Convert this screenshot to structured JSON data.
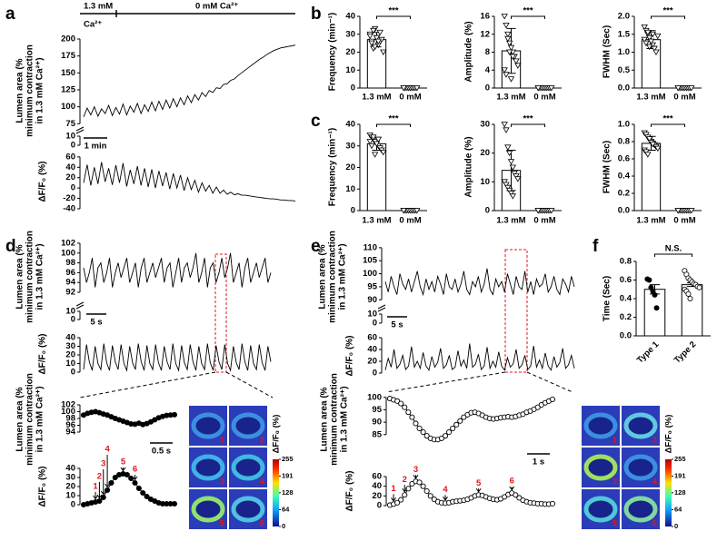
{
  "chart_data": [
    {
      "type": "line",
      "label": "a",
      "ylabel": [
        "Lumen area (%",
        "minimum contraction",
        "in 1.3 mM Ca²⁺)"
      ],
      "annotations": [
        "1.3 mM",
        "Ca²⁺",
        "0 mM Ca²⁺"
      ],
      "scalebar": "1 min",
      "ylim": [
        70,
        200
      ],
      "yticks": [
        75,
        100,
        125,
        150,
        175,
        200
      ],
      "break_ticks": [
        0,
        10
      ],
      "values": [
        85,
        98,
        88,
        100,
        86,
        97,
        90,
        102,
        87,
        99,
        89,
        104,
        88,
        101,
        92,
        105,
        90,
        103,
        93,
        107,
        94,
        108,
        96,
        110,
        98,
        112,
        100,
        113,
        103,
        116,
        106,
        118,
        110,
        121,
        115,
        124,
        121,
        128,
        127,
        133,
        134,
        139,
        141,
        146,
        150,
        154,
        158,
        162,
        166,
        170,
        173,
        177,
        180,
        183,
        185,
        187,
        188,
        189,
        190,
        191
      ]
    },
    {
      "type": "line",
      "ylabel": [
        "ΔF/F₀ (%)"
      ],
      "ylim": [
        -40,
        65
      ],
      "yticks": [
        -40,
        -20,
        0,
        20,
        40,
        60
      ],
      "values": [
        10,
        45,
        5,
        40,
        8,
        50,
        12,
        38,
        6,
        44,
        10,
        48,
        3,
        35,
        8,
        42,
        5,
        38,
        2,
        36,
        0,
        33,
        4,
        30,
        -2,
        28,
        0,
        25,
        -5,
        20,
        -3,
        15,
        -8,
        10,
        -6,
        5,
        -10,
        2,
        -10,
        -4,
        -12,
        -8,
        -13,
        -11,
        -14,
        -14,
        -15,
        -16,
        -17,
        -18,
        -19,
        -20,
        -21,
        -21,
        -22,
        -23,
        -23,
        -24,
        -24,
        -25
      ]
    },
    {
      "type": "bar",
      "label": "b",
      "ylabel": [
        "Frequency (min⁻¹)"
      ],
      "categories": [
        "1.3 mM",
        "0 mM"
      ],
      "values": [
        27,
        0
      ],
      "errors": [
        4,
        0
      ],
      "markers": [
        "triangle",
        "triangle"
      ],
      "significance": "***",
      "ylim": [
        0,
        40
      ],
      "yticks": [
        0,
        10,
        20,
        30,
        40
      ],
      "points": [
        [
          30,
          26,
          22,
          33,
          28,
          24,
          31,
          27,
          20,
          29,
          25,
          32,
          23,
          28,
          26
        ],
        [
          0,
          0,
          0,
          0,
          0,
          0,
          0,
          0,
          0,
          0
        ]
      ]
    },
    {
      "type": "bar",
      "ylabel": [
        "Amplitude (%)"
      ],
      "categories": [
        "1.3 mM",
        "0 mM"
      ],
      "values": [
        8.3,
        0
      ],
      "errors": [
        5,
        0
      ],
      "markers": [
        "triangle",
        "triangle"
      ],
      "significance": "***",
      "ylim": [
        0,
        16
      ],
      "yticks": [
        0,
        4,
        8,
        12,
        16
      ],
      "points": [
        [
          16,
          14,
          12,
          10,
          9,
          8,
          7,
          6,
          5,
          4,
          3,
          11,
          8,
          2,
          7
        ],
        [
          0,
          0,
          0,
          0,
          0,
          0,
          0,
          0,
          0,
          0
        ]
      ]
    },
    {
      "type": "bar",
      "ylabel": [
        "FWHM (Sec)"
      ],
      "categories": [
        "1.3 mM",
        "0 mM"
      ],
      "values": [
        1.35,
        0
      ],
      "errors": [
        0.25,
        0
      ],
      "markers": [
        "triangle",
        "triangle"
      ],
      "significance": "***",
      "ylim": [
        0,
        2
      ],
      "yticks": [
        {
          "value": 0,
          "label": "0.0"
        },
        0.5,
        {
          "value": 1,
          "label": "1.0"
        },
        1.5,
        {
          "value": 2,
          "label": "2.0"
        }
      ],
      "points": [
        [
          1.7,
          1.6,
          1.5,
          1.4,
          1.3,
          1.2,
          1.1,
          1.0,
          1.45,
          1.35,
          1.25,
          1.55,
          1.15,
          1.3,
          1.5
        ],
        [
          0,
          0,
          0,
          0,
          0,
          0,
          0,
          0,
          0,
          0
        ]
      ]
    },
    {
      "type": "bar",
      "label": "c",
      "ylabel": [
        "Frequency (min⁻¹)"
      ],
      "categories": [
        "1.3 mM",
        "0 mM"
      ],
      "values": [
        31,
        0
      ],
      "errors": [
        3,
        0
      ],
      "markers": [
        "triangle",
        "triangle"
      ],
      "significance": "***",
      "ylim": [
        0,
        40
      ],
      "yticks": [
        0,
        10,
        20,
        30,
        40
      ],
      "points": [
        [
          35,
          34,
          33,
          32,
          31,
          30,
          29,
          28,
          27,
          32,
          30,
          34,
          26,
          31,
          33
        ],
        [
          0,
          0,
          0,
          0,
          0,
          0,
          0,
          0,
          0,
          0
        ]
      ]
    },
    {
      "type": "bar",
      "ylabel": [
        "Amplitude (%)"
      ],
      "categories": [
        "1.3 mM",
        "0 mM"
      ],
      "values": [
        14,
        0
      ],
      "errors": [
        7,
        0
      ],
      "markers": [
        "triangle",
        "triangle"
      ],
      "significance": "***",
      "ylim": [
        0,
        30
      ],
      "yticks": [
        0,
        10,
        20,
        30
      ],
      "points": [
        [
          30,
          28,
          22,
          20,
          17,
          15,
          13,
          12,
          11,
          10,
          9,
          8,
          7,
          6,
          5
        ],
        [
          0,
          0,
          0,
          0,
          0,
          0,
          0,
          0,
          0,
          0
        ]
      ]
    },
    {
      "type": "bar",
      "ylabel": [
        "FWHM (Sec)"
      ],
      "categories": [
        "1.3 mM",
        "0 mM"
      ],
      "values": [
        0.78,
        0
      ],
      "errors": [
        0.08,
        0
      ],
      "markers": [
        "triangle",
        "triangle"
      ],
      "significance": "***",
      "ylim": [
        0,
        1
      ],
      "yticks": [
        {
          "value": 0,
          "label": "0.0"
        },
        0.2,
        0.4,
        0.6,
        0.8,
        {
          "value": 1,
          "label": "1.0"
        }
      ],
      "points": [
        [
          0.9,
          0.88,
          0.85,
          0.82,
          0.8,
          0.78,
          0.76,
          0.74,
          0.72,
          0.7,
          0.68,
          0.65,
          0.83,
          0.79,
          0.77
        ],
        [
          0,
          0,
          0,
          0,
          0,
          0,
          0,
          0,
          0,
          0
        ]
      ]
    },
    {
      "type": "line",
      "label": "d",
      "ylabel": [
        "Lumen area (%",
        "minimum contraction",
        "in 1.3 mM Ca²⁺)"
      ],
      "scalebar": "5 s",
      "ylim": [
        92,
        102
      ],
      "yticks": [
        92,
        94,
        96,
        98,
        100,
        102
      ],
      "break_ticks": [
        0,
        10
      ],
      "values": [
        97,
        94,
        96,
        99,
        93,
        97,
        98,
        94,
        96,
        99,
        93,
        96,
        98,
        95,
        97,
        99,
        94,
        96,
        98,
        93,
        97,
        99,
        94,
        96,
        98,
        95,
        97,
        99,
        94,
        97,
        98,
        93,
        96,
        99,
        94,
        97,
        98,
        95,
        97,
        100,
        94,
        96,
        99,
        93,
        97,
        98,
        94,
        96,
        99,
        95,
        97,
        100,
        94,
        96,
        98,
        93,
        97,
        99,
        94,
        96,
        98,
        95,
        97,
        99,
        94,
        96
      ]
    },
    {
      "type": "line",
      "ylabel": [
        "ΔF/F₀ (%)"
      ],
      "ylim": [
        0,
        40
      ],
      "yticks": [
        0,
        10,
        20,
        30,
        40
      ],
      "values": [
        3,
        32,
        12,
        2,
        30,
        10,
        3,
        33,
        11,
        2,
        31,
        12,
        3,
        32,
        10,
        2,
        30,
        11,
        3,
        33,
        12,
        2,
        31,
        10,
        3,
        32,
        11,
        2,
        30,
        12,
        3,
        33,
        10,
        2,
        31,
        11,
        3,
        32,
        12,
        2,
        30,
        10,
        3,
        33,
        11,
        2,
        31,
        12,
        3,
        32,
        10,
        2,
        30,
        11,
        3,
        33,
        12,
        2,
        31,
        10,
        3,
        32,
        11,
        2,
        30,
        12
      ]
    },
    {
      "type": "line",
      "ylabel": [
        "Lumen area (%",
        "minimum contraction",
        "in 1.3 mM Ca²⁺)"
      ],
      "scalebar": "0.5 s",
      "markers": "filled",
      "ylim": [
        94,
        102
      ],
      "yticks": [
        94,
        96,
        98,
        100,
        102
      ],
      "values": [
        99,
        99.5,
        99.8,
        100,
        99.7,
        99.3,
        99,
        98.5,
        98,
        97.6,
        97.2,
        96.8,
        96.4,
        96.3,
        96.6,
        96.2,
        96.5,
        97,
        97.6,
        98.2,
        98.6,
        98.9,
        99,
        99.1
      ]
    },
    {
      "type": "line",
      "ylabel": [
        "ΔF/F₀ (%)"
      ],
      "markers": "filled",
      "arrows": [
        "1",
        "2",
        "3",
        "4",
        "5",
        "6"
      ],
      "ylim": [
        0,
        40
      ],
      "yticks": [
        0,
        10,
        20,
        30,
        40
      ],
      "values": [
        0,
        1,
        2,
        3,
        4,
        8,
        16,
        24,
        30,
        33,
        34,
        33,
        29,
        24,
        18,
        13,
        9,
        6,
        4,
        2,
        1,
        1,
        1,
        1
      ]
    },
    {
      "type": "line",
      "label": "e",
      "ylabel": [
        "Lumen area (%",
        "minimum contraction",
        "in 1.3 mM Ca²⁺)"
      ],
      "scalebar": "5 s",
      "ylim": [
        88,
        111
      ],
      "yticks": [
        90,
        95,
        100,
        105,
        110
      ],
      "break_ticks": [
        0,
        10
      ],
      "values": [
        97,
        93,
        99,
        95,
        92,
        100,
        96,
        94,
        98,
        93,
        97,
        101,
        95,
        92,
        98,
        94,
        97,
        93,
        99,
        96,
        92,
        100,
        95,
        94,
        98,
        93,
        96,
        101,
        94,
        92,
        97,
        95,
        99,
        93,
        96,
        102,
        94,
        92,
        98,
        95,
        97,
        93,
        100,
        96,
        92,
        99,
        95,
        94,
        101,
        93,
        97,
        92,
        98,
        95,
        96,
        100,
        93,
        95,
        99,
        94,
        92,
        98,
        96,
        93,
        99,
        95
      ]
    },
    {
      "type": "line",
      "ylabel": [
        "ΔF/F₀ (%)"
      ],
      "ylim": [
        0,
        60
      ],
      "yticks": [
        0,
        20,
        40,
        60
      ],
      "values": [
        5,
        25,
        10,
        40,
        8,
        15,
        30,
        6,
        12,
        45,
        10,
        20,
        8,
        35,
        12,
        5,
        28,
        10,
        18,
        42,
        8,
        14,
        30,
        6,
        10,
        38,
        12,
        22,
        8,
        50,
        10,
        15,
        32,
        6,
        12,
        44,
        8,
        20,
        10,
        36,
        12,
        5,
        26,
        10,
        16,
        40,
        8,
        14,
        30,
        6,
        12,
        46,
        10,
        22,
        8,
        34,
        12,
        5,
        28,
        10,
        18,
        42,
        8,
        14,
        30,
        8
      ]
    },
    {
      "type": "line",
      "ylabel": [
        "Lumen area (%",
        "minimum contraction",
        "in 1.3 mM Ca²⁺)"
      ],
      "scalebar": "1 s",
      "markers": "open",
      "ylim": [
        82,
        101
      ],
      "yticks": [
        85,
        90,
        95,
        100
      ],
      "values": [
        99.5,
        99,
        98.5,
        97.5,
        96,
        94,
        92,
        89.5,
        87.5,
        86,
        84.5,
        83.5,
        83,
        83,
        83.5,
        84.5,
        86,
        87.5,
        89,
        90.5,
        92,
        93,
        93.8,
        94,
        93.5,
        92.8,
        92,
        91.5,
        91.3,
        91.5,
        91.8,
        92,
        92.2,
        92,
        92.3,
        92.8,
        93.2,
        94,
        94.5,
        95.2,
        96,
        97,
        97.8,
        98.5,
        99.2
      ]
    },
    {
      "type": "line",
      "ylabel": [
        "ΔF/F₀ (%)"
      ],
      "markers": "open",
      "arrows": [
        "1",
        "2",
        "3",
        "4",
        "5",
        "6"
      ],
      "ylim": [
        0,
        60
      ],
      "yticks": [
        0,
        20,
        40,
        60
      ],
      "values": [
        1,
        3,
        6,
        12,
        22,
        35,
        45,
        50,
        48,
        40,
        30,
        20,
        13,
        8,
        6,
        5,
        6,
        8,
        9,
        10,
        11,
        13,
        16,
        20,
        22,
        21,
        18,
        15,
        13,
        12,
        14,
        18,
        23,
        26,
        22,
        16,
        11,
        8,
        6,
        5,
        4,
        4,
        3,
        3,
        4
      ]
    },
    {
      "type": "bar",
      "label": "f",
      "ylabel": [
        "Time (Sec)"
      ],
      "categories": [
        "Type 1",
        "Type 2"
      ],
      "values": [
        0.5,
        0.55
      ],
      "errors": [
        0.05,
        0.02
      ],
      "markers": [
        "filled-circle",
        "open-circle"
      ],
      "significance": "N.S.",
      "ylim": [
        0,
        0.8
      ],
      "yticks": [
        {
          "value": 0,
          "label": "0.0"
        },
        0.2,
        0.4,
        0.6,
        0.8
      ],
      "points": [
        [
          0.61,
          0.6,
          0.52,
          0.48,
          0.44,
          0.3
        ],
        [
          0.7,
          0.66,
          0.62,
          0.6,
          0.58,
          0.56,
          0.55,
          0.53,
          0.52,
          0.5,
          0.48,
          0.45,
          0.4
        ]
      ]
    }
  ],
  "image_panels": [
    {
      "frames": [
        "1",
        "2",
        "3",
        "4",
        "5",
        "6"
      ],
      "colorbar_label": "ΔF/F₀ (%)",
      "colorbar_lim": [
        0,
        255
      ],
      "colorbar_ticks": [
        255,
        191,
        128,
        64,
        0
      ]
    },
    {
      "frames": [
        "1",
        "2",
        "3",
        "4",
        "5",
        "6"
      ],
      "colorbar_label": "ΔF/F₀ (%)",
      "colorbar_lim": [
        0,
        255
      ],
      "colorbar_ticks": [
        255,
        191,
        128,
        64,
        0
      ]
    }
  ]
}
